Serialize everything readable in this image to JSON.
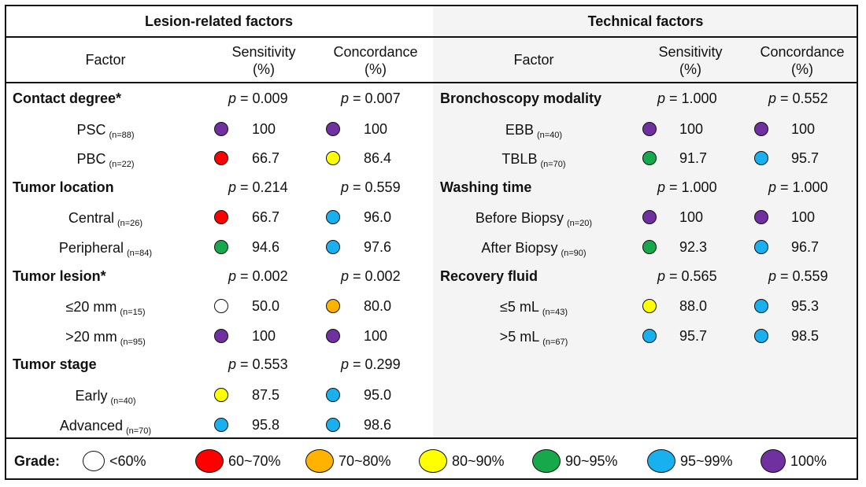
{
  "grade_colors": {
    "lt60": "#ffffff",
    "g60_70": "#ff0000",
    "g70_80": "#ffb300",
    "g80_90": "#ffff00",
    "g90_95": "#17a84b",
    "g95_99": "#19b0ef",
    "g100": "#7030a0"
  },
  "chart_data": {
    "type": "table",
    "panels": [
      {
        "title": "Lesion-related factors",
        "columns": [
          "Factor",
          "Sensitivity\n(%)",
          "Concordance\n(%)"
        ],
        "groups": [
          {
            "name": "Contact degree*",
            "p_sensitivity": "= 0.009",
            "p_concordance": "= 0.007",
            "rows": [
              {
                "label": "PSC",
                "n": "(n=88)",
                "sensitivity": "100",
                "concordance": "100",
                "sens_grade": "g100",
                "conc_grade": "g100"
              },
              {
                "label": "PBC",
                "n": "(n=22)",
                "sensitivity": "66.7",
                "concordance": "86.4",
                "sens_grade": "g60_70",
                "conc_grade": "g80_90"
              }
            ]
          },
          {
            "name": "Tumor location",
            "p_sensitivity": "= 0.214",
            "p_concordance": "= 0.559",
            "rows": [
              {
                "label": "Central",
                "n": "(n=26)",
                "sensitivity": "66.7",
                "concordance": "96.0",
                "sens_grade": "g60_70",
                "conc_grade": "g95_99"
              },
              {
                "label": "Peripheral",
                "n": "(n=84)",
                "sensitivity": "94.6",
                "concordance": "97.6",
                "sens_grade": "g90_95",
                "conc_grade": "g95_99"
              }
            ]
          },
          {
            "name": "Tumor lesion*",
            "p_sensitivity": "= 0.002",
            "p_concordance": "= 0.002",
            "rows": [
              {
                "label": "≤20 mm",
                "n": "(n=15)",
                "sensitivity": "50.0",
                "concordance": "80.0",
                "sens_grade": "lt60",
                "conc_grade": "g70_80"
              },
              {
                "label": ">20 mm",
                "n": "(n=95)",
                "sensitivity": "100",
                "concordance": "100",
                "sens_grade": "g100",
                "conc_grade": "g100"
              }
            ]
          },
          {
            "name": "Tumor stage",
            "p_sensitivity": "= 0.553",
            "p_concordance": "= 0.299",
            "rows": [
              {
                "label": "Early",
                "n": "(n=40)",
                "sensitivity": "87.5",
                "concordance": "95.0",
                "sens_grade": "g80_90",
                "conc_grade": "g95_99"
              },
              {
                "label": "Advanced",
                "n": "(n=70)",
                "sensitivity": "95.8",
                "concordance": "98.6",
                "sens_grade": "g95_99",
                "conc_grade": "g95_99"
              }
            ]
          }
        ]
      },
      {
        "title": "Technical factors",
        "columns": [
          "Factor",
          "Sensitivity\n(%)",
          "Concordance\n(%)"
        ],
        "groups": [
          {
            "name": "Bronchoscopy modality",
            "p_sensitivity": "= 1.000",
            "p_concordance": "= 0.552",
            "rows": [
              {
                "label": "EBB",
                "n": "(n=40)",
                "sensitivity": "100",
                "concordance": "100",
                "sens_grade": "g100",
                "conc_grade": "g100"
              },
              {
                "label": "TBLB",
                "n": "(n=70)",
                "sensitivity": "91.7",
                "concordance": "95.7",
                "sens_grade": "g90_95",
                "conc_grade": "g95_99"
              }
            ]
          },
          {
            "name": "Washing time",
            "p_sensitivity": "= 1.000",
            "p_concordance": "= 1.000",
            "rows": [
              {
                "label": "Before Biopsy",
                "n": "(n=20)",
                "sensitivity": "100",
                "concordance": "100",
                "sens_grade": "g100",
                "conc_grade": "g100"
              },
              {
                "label": "After Biopsy",
                "n": "(n=90)",
                "sensitivity": "92.3",
                "concordance": "96.7",
                "sens_grade": "g90_95",
                "conc_grade": "g95_99"
              }
            ]
          },
          {
            "name": "Recovery fluid",
            "p_sensitivity": "= 0.565",
            "p_concordance": "= 0.559",
            "rows": [
              {
                "label": "≤5 mL",
                "n": "(n=43)",
                "sensitivity": "88.0",
                "concordance": "95.3",
                "sens_grade": "g80_90",
                "conc_grade": "g95_99"
              },
              {
                "label": ">5 mL",
                "n": "(n=67)",
                "sensitivity": "95.7",
                "concordance": "98.5",
                "sens_grade": "g95_99",
                "conc_grade": "g95_99"
              }
            ]
          }
        ]
      }
    ],
    "p_symbol": "p",
    "legend": {
      "title": "Grade:",
      "items": [
        {
          "label": "<60%",
          "grade": "lt60"
        },
        {
          "label": "60~70%",
          "grade": "g60_70"
        },
        {
          "label": "70~80%",
          "grade": "g70_80"
        },
        {
          "label": "80~90%",
          "grade": "g80_90"
        },
        {
          "label": "90~95%",
          "grade": "g90_95"
        },
        {
          "label": "95~99%",
          "grade": "g95_99"
        },
        {
          "label": "100%",
          "grade": "g100"
        }
      ]
    }
  }
}
